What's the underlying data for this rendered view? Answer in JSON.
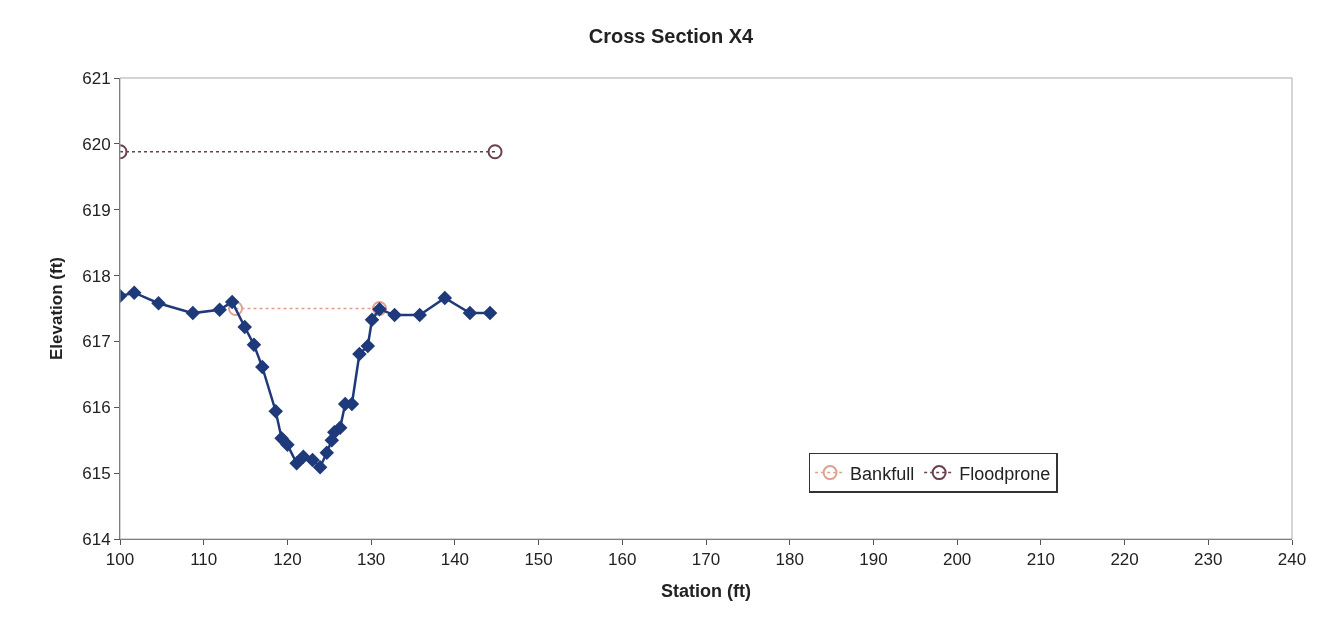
{
  "chart_data": {
    "type": "line",
    "title": "Cross Section X4",
    "xlabel": "Station (ft)",
    "ylabel": "Elevation (ft)",
    "xlim": [
      100,
      240
    ],
    "xticks": [
      100,
      110,
      120,
      130,
      140,
      150,
      160,
      170,
      180,
      190,
      200,
      210,
      220,
      230,
      240
    ],
    "ylim": [
      614,
      621
    ],
    "yticks": [
      614,
      615,
      616,
      617,
      618,
      619,
      620,
      621
    ],
    "legend": "bottom right",
    "series": [
      {
        "color": "#1f3a7a",
        "marker": "diamond",
        "line_style": "solid",
        "x": [
          100,
          101.7,
          104.6,
          108.7,
          111.9,
          113.4,
          114.9,
          116.0,
          117.0,
          118.6,
          119.3,
          120.0,
          121.1,
          121.9,
          123.0,
          123.9,
          124.7,
          125.3,
          125.6,
          126.3,
          126.9,
          127.7,
          128.6,
          129.6,
          130.1,
          131.0,
          132.8,
          135.8,
          138.8,
          141.8,
          144.2
        ],
        "values": [
          617.69,
          617.74,
          617.58,
          617.43,
          617.48,
          617.6,
          617.22,
          616.95,
          616.61,
          615.94,
          615.53,
          615.43,
          615.15,
          615.25,
          615.2,
          615.09,
          615.31,
          615.5,
          615.62,
          615.69,
          616.05,
          616.05,
          616.81,
          616.93,
          617.33,
          617.49,
          617.4,
          617.4,
          617.66,
          617.43,
          617.43
        ]
      },
      {
        "name": "Bankfull",
        "color": "#e0a090",
        "marker": "circle",
        "line_style": "dotted",
        "x": [
          113.8,
          131.0
        ],
        "values": [
          617.5,
          617.5
        ]
      },
      {
        "name": "Floodprone",
        "color": "#6a4050",
        "marker": "circle",
        "line_style": "dotted",
        "x": [
          100,
          144.8
        ],
        "values": [
          619.88,
          619.88
        ]
      }
    ]
  }
}
